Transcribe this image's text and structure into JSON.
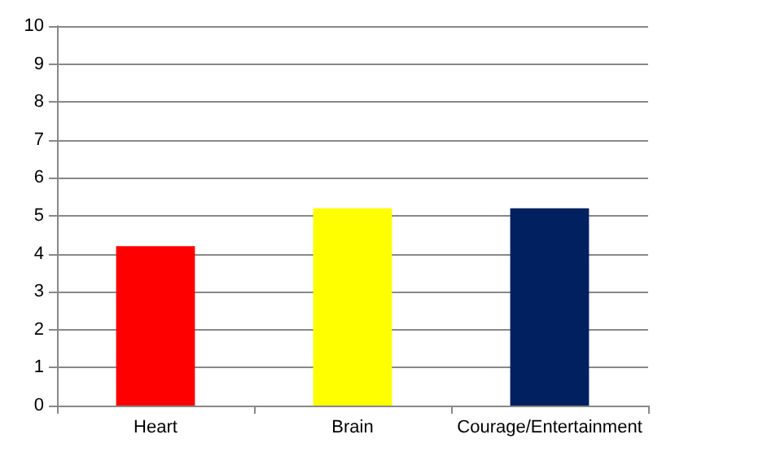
{
  "chart_data": {
    "type": "bar",
    "categories": [
      "Heart",
      "Brain",
      "Courage/Entertainment"
    ],
    "values": [
      4.2,
      5.2,
      5.2
    ],
    "colors": [
      "#ff0000",
      "#ffff00",
      "#002060"
    ],
    "ylim": [
      0,
      10
    ],
    "yticks": [
      0,
      1,
      2,
      3,
      4,
      5,
      6,
      7,
      8,
      9,
      10
    ],
    "grid": "y"
  }
}
